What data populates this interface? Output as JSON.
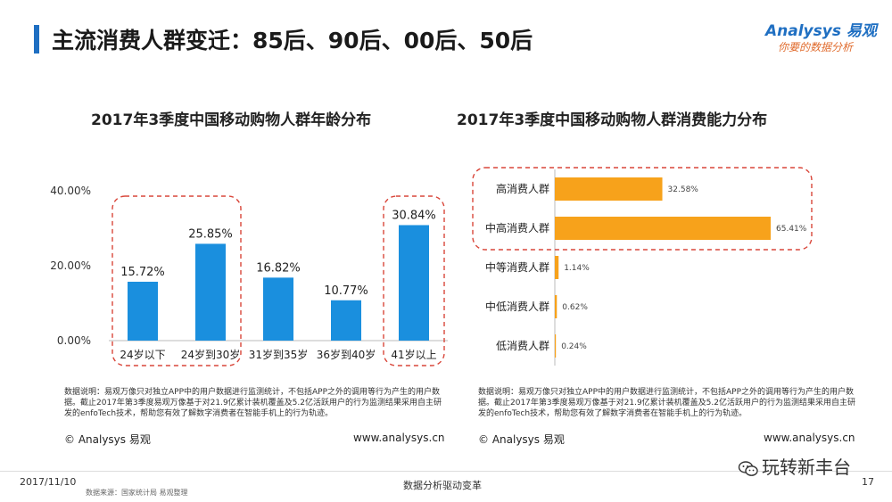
{
  "header": {
    "title": "主流消费人群变迁：85后、90后、00后、50后"
  },
  "logo": {
    "name": "Analysys 易观",
    "slogan": "你要的数据分析"
  },
  "accent_color": "#1f6fc2",
  "chart_data": [
    {
      "type": "bar",
      "title": "2017年3季度中国移动购物人群年龄分布",
      "categories": [
        "24岁以下",
        "24岁到30岁",
        "31岁到35岁",
        "36岁到40岁",
        "41岁以上"
      ],
      "values": [
        15.72,
        25.85,
        16.82,
        10.77,
        30.84
      ],
      "value_labels": [
        "15.72%",
        "25.85%",
        "16.82%",
        "10.77%",
        "30.84%"
      ],
      "yticks": [
        "0.00%",
        "20.00%",
        "40.00%"
      ],
      "ylim": [
        0,
        40
      ],
      "bar_color": "#1a8fde",
      "highlight_groups": [
        [
          0,
          1
        ],
        [
          4
        ]
      ]
    },
    {
      "type": "bar",
      "orientation": "horizontal",
      "title": "2017年3季度中国移动购物人群消费能力分布",
      "categories": [
        "高消费人群",
        "中高消费人群",
        "中等消费人群",
        "中低消费人群",
        "低消费人群"
      ],
      "values": [
        32.58,
        65.41,
        1.14,
        0.62,
        0.24
      ],
      "value_labels": [
        "32.58%",
        "65.41%",
        "1.14%",
        "0.62%",
        "0.24%"
      ],
      "xlim": [
        0,
        65.41
      ],
      "bar_color": "#f7a21b",
      "highlight_groups": [
        [
          0,
          1
        ]
      ]
    }
  ],
  "notes": {
    "left": "数据说明：易观万像只对独立APP中的用户数据进行监测统计，不包括APP之外的调用等行为产生的用户数据。截止2017年第3季度易观万像基于对21.9亿累计装机覆盖及5.2亿活跃用户的行为监测结果采用自主研发的enfoTech技术，帮助您有效了解数字消费者在智能手机上的行为轨迹。",
    "right": "数据说明：易观万像只对独立APP中的用户数据进行监测统计，不包括APP之外的调用等行为产生的用户数据。截止2017年第3季度易观万像基于对21.9亿累计装机覆盖及5.2亿活跃用户的行为监测结果采用自主研发的enfoTech技术，帮助您有效了解数字消费者在智能手机上的行为轨迹。"
  },
  "copyright": "© Analysys 易观",
  "website": "www.analysys.cn",
  "footer": {
    "date": "2017/11/10",
    "source": "数据来源：国家统计局  易观整理",
    "center": "数据分析驱动变革",
    "page": "17",
    "wechat": "玩转新丰台"
  }
}
